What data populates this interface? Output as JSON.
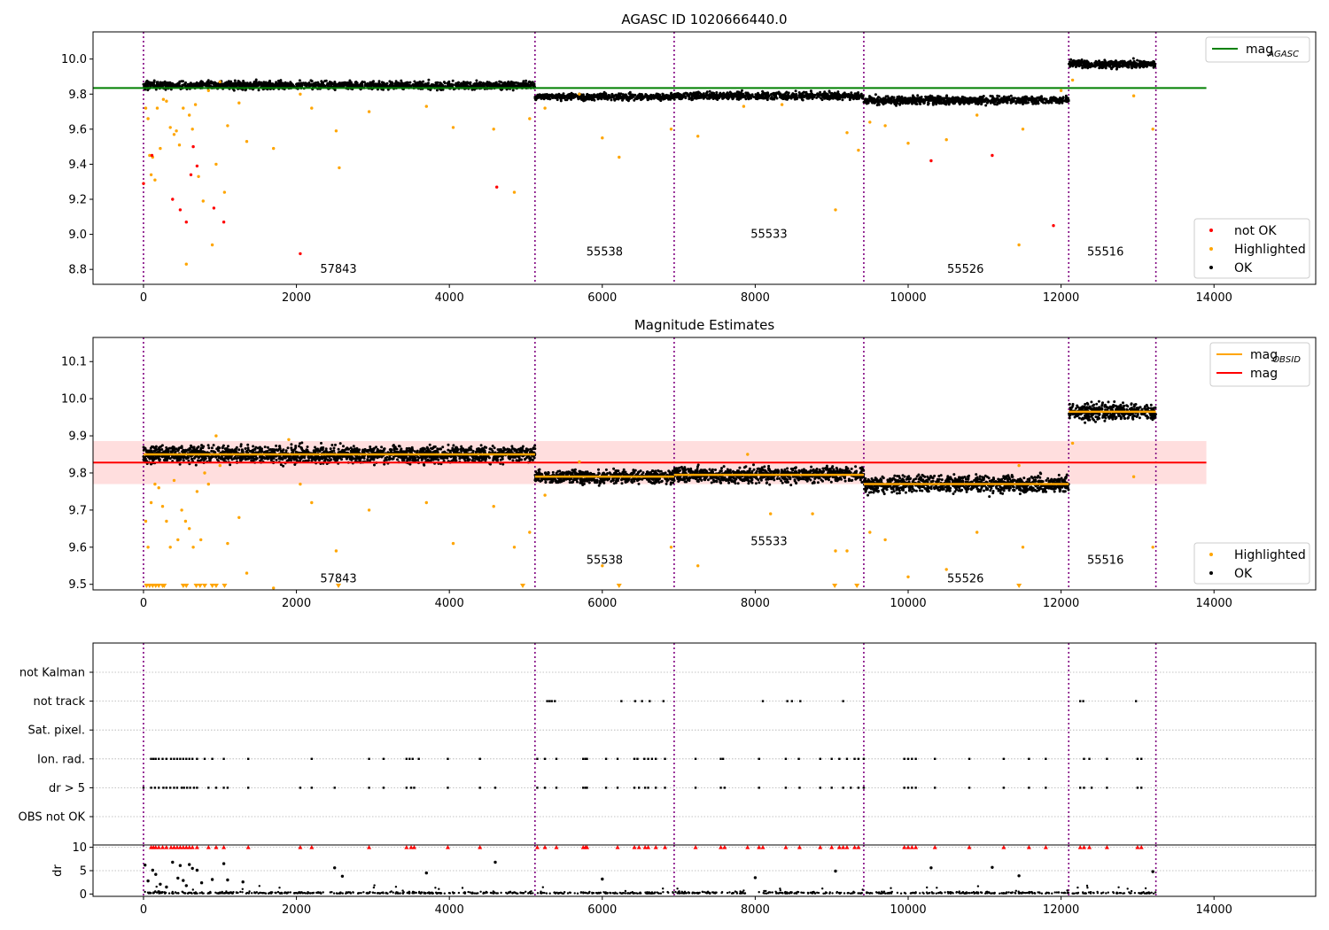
{
  "figure": {
    "title": "AGASC ID 1020666440.0",
    "colors": {
      "ok": "#000000",
      "highlighted": "#ffa500",
      "not_ok": "#ff0000",
      "agasc_line": "#008000",
      "obsid_line": "#ffa500",
      "mag_line": "#ff0000",
      "mag_band": "#ffd6d6",
      "obs_boundary": "#800080",
      "grid": "#b0b0b0"
    }
  },
  "chart_data": [
    {
      "id": "panel-agasc",
      "type": "scatter",
      "title": "AGASC ID 1020666440.0",
      "xlim": [
        -660,
        15330
      ],
      "ylim": [
        8.715,
        10.155
      ],
      "xticks": [
        0,
        2000,
        4000,
        6000,
        8000,
        10000,
        12000,
        14000
      ],
      "yticks": [
        8.8,
        9.0,
        9.2,
        9.4,
        9.6,
        9.8,
        10.0
      ],
      "ytick_labels": [
        "8.8",
        "9.0",
        "9.2",
        "9.4",
        "9.6",
        "9.8",
        "10.0"
      ],
      "obs_boundaries": [
        0,
        5120,
        6940,
        9420,
        12100,
        13240
      ],
      "obsids": [
        {
          "label": "57843",
          "x": 2550,
          "y": 8.78
        },
        {
          "label": "55538",
          "x": 6030,
          "y": 8.88
        },
        {
          "label": "55533",
          "x": 8180,
          "y": 8.98
        },
        {
          "label": "55526",
          "x": 10750,
          "y": 8.78
        },
        {
          "label": "55516",
          "x": 12580,
          "y": 8.88
        }
      ],
      "segments": [
        {
          "x0": 0,
          "x1": 5120,
          "mag": 9.85,
          "spread": 0.022
        },
        {
          "x0": 5120,
          "x1": 6940,
          "mag": 9.785,
          "spread": 0.018
        },
        {
          "x0": 6940,
          "x1": 9420,
          "mag": 9.79,
          "spread": 0.02
        },
        {
          "x0": 9420,
          "x1": 12100,
          "mag": 9.765,
          "spread": 0.022
        },
        {
          "x0": 12100,
          "x1": 13240,
          "mag": 9.97,
          "spread": 0.022
        }
      ],
      "agasc_mag": 9.835,
      "agasc_line_x": [
        -660,
        13900
      ],
      "highlighted_points": [
        [
          30,
          9.72
        ],
        [
          60,
          9.66
        ],
        [
          80,
          9.45
        ],
        [
          100,
          9.34
        ],
        [
          120,
          9.44
        ],
        [
          150,
          9.31
        ],
        [
          180,
          9.72
        ],
        [
          220,
          9.49
        ],
        [
          260,
          9.77
        ],
        [
          300,
          9.76
        ],
        [
          350,
          9.61
        ],
        [
          400,
          9.57
        ],
        [
          430,
          9.59
        ],
        [
          470,
          9.51
        ],
        [
          520,
          9.72
        ],
        [
          560,
          8.83
        ],
        [
          600,
          9.68
        ],
        [
          640,
          9.6
        ],
        [
          680,
          9.74
        ],
        [
          720,
          9.33
        ],
        [
          780,
          9.19
        ],
        [
          850,
          9.82
        ],
        [
          900,
          8.94
        ],
        [
          950,
          9.4
        ],
        [
          1000,
          9.87
        ],
        [
          1060,
          9.24
        ],
        [
          1100,
          9.62
        ],
        [
          1250,
          9.75
        ],
        [
          1350,
          9.53
        ],
        [
          1700,
          9.49
        ],
        [
          2050,
          9.8
        ],
        [
          2200,
          9.72
        ],
        [
          2520,
          9.59
        ],
        [
          2560,
          9.38
        ],
        [
          2950,
          9.7
        ],
        [
          3700,
          9.73
        ],
        [
          4050,
          9.61
        ],
        [
          4580,
          9.6
        ],
        [
          4850,
          9.24
        ],
        [
          5050,
          9.66
        ],
        [
          5250,
          9.72
        ],
        [
          5700,
          9.8
        ],
        [
          6000,
          9.55
        ],
        [
          6220,
          9.44
        ],
        [
          6900,
          9.6
        ],
        [
          7250,
          9.56
        ],
        [
          7850,
          9.73
        ],
        [
          8350,
          9.74
        ],
        [
          9050,
          9.14
        ],
        [
          9200,
          9.58
        ],
        [
          9350,
          9.48
        ],
        [
          9500,
          9.64
        ],
        [
          9700,
          9.62
        ],
        [
          10000,
          9.52
        ],
        [
          10500,
          9.54
        ],
        [
          10900,
          9.68
        ],
        [
          11450,
          8.94
        ],
        [
          11500,
          9.6
        ],
        [
          12000,
          9.82
        ],
        [
          12150,
          9.88
        ],
        [
          12950,
          9.79
        ],
        [
          13200,
          9.6
        ]
      ],
      "not_ok_points": [
        [
          0,
          9.29
        ],
        [
          110,
          9.45
        ],
        [
          380,
          9.2
        ],
        [
          480,
          9.14
        ],
        [
          560,
          9.07
        ],
        [
          620,
          9.34
        ],
        [
          650,
          9.5
        ],
        [
          700,
          9.39
        ],
        [
          920,
          9.15
        ],
        [
          1050,
          9.07
        ],
        [
          2050,
          8.89
        ],
        [
          4620,
          9.27
        ],
        [
          10300,
          9.42
        ],
        [
          11100,
          9.45
        ],
        [
          11900,
          9.05
        ]
      ],
      "legend": [
        {
          "label": "mag",
          "sub": "AGASC",
          "marker": "line",
          "color": "#008000"
        }
      ],
      "legend2": [
        {
          "label": "not OK",
          "marker": "dot",
          "color": "#ff0000"
        },
        {
          "label": "Highlighted",
          "marker": "dot",
          "color": "#ffa500"
        },
        {
          "label": "OK",
          "marker": "dot",
          "color": "#000000"
        }
      ]
    },
    {
      "id": "panel-estimates",
      "type": "scatter",
      "title": "Magnitude Estimates",
      "xlim": [
        -660,
        15330
      ],
      "ylim": [
        9.485,
        10.165
      ],
      "xticks": [
        0,
        2000,
        4000,
        6000,
        8000,
        10000,
        12000,
        14000
      ],
      "yticks": [
        9.5,
        9.6,
        9.7,
        9.8,
        9.9,
        10.0,
        10.1
      ],
      "ytick_labels": [
        "9.5",
        "9.6",
        "9.7",
        "9.8",
        "9.9",
        "10.0",
        "10.1"
      ],
      "obs_boundaries": [
        0,
        5120,
        6940,
        9420,
        12100,
        13240
      ],
      "obsids": [
        {
          "label": "57843",
          "x": 2550,
          "y": 9.505
        },
        {
          "label": "55538",
          "x": 6030,
          "y": 9.555
        },
        {
          "label": "55533",
          "x": 8180,
          "y": 9.605
        },
        {
          "label": "55526",
          "x": 10750,
          "y": 9.505
        },
        {
          "label": "55516",
          "x": 12580,
          "y": 9.555
        }
      ],
      "segments": [
        {
          "x0": 0,
          "x1": 5120,
          "mag": 9.85,
          "spread": 0.022
        },
        {
          "x0": 5120,
          "x1": 6940,
          "mag": 9.79,
          "spread": 0.018
        },
        {
          "x0": 6940,
          "x1": 9420,
          "mag": 9.795,
          "spread": 0.02
        },
        {
          "x0": 9420,
          "x1": 12100,
          "mag": 9.77,
          "spread": 0.022
        },
        {
          "x0": 12100,
          "x1": 13240,
          "mag": 9.965,
          "spread": 0.022
        }
      ],
      "mag": 9.828,
      "mag_band": [
        9.77,
        9.886
      ],
      "band_x": [
        -660,
        13900
      ],
      "highlighted_points": [
        [
          30,
          9.67
        ],
        [
          60,
          9.6
        ],
        [
          100,
          9.72
        ],
        [
          150,
          9.77
        ],
        [
          200,
          9.76
        ],
        [
          250,
          9.71
        ],
        [
          300,
          9.67
        ],
        [
          350,
          9.6
        ],
        [
          400,
          9.78
        ],
        [
          450,
          9.62
        ],
        [
          500,
          9.7
        ],
        [
          550,
          9.67
        ],
        [
          600,
          9.65
        ],
        [
          650,
          9.6
        ],
        [
          700,
          9.75
        ],
        [
          750,
          9.62
        ],
        [
          800,
          9.8
        ],
        [
          850,
          9.77
        ],
        [
          950,
          9.9
        ],
        [
          1000,
          9.82
        ],
        [
          1100,
          9.61
        ],
        [
          1250,
          9.68
        ],
        [
          1350,
          9.53
        ],
        [
          1700,
          9.49
        ],
        [
          1900,
          9.89
        ],
        [
          2050,
          9.77
        ],
        [
          2200,
          9.72
        ],
        [
          2520,
          9.59
        ],
        [
          2950,
          9.7
        ],
        [
          3700,
          9.72
        ],
        [
          4050,
          9.61
        ],
        [
          4580,
          9.71
        ],
        [
          4850,
          9.6
        ],
        [
          5050,
          9.64
        ],
        [
          5250,
          9.74
        ],
        [
          5700,
          9.83
        ],
        [
          6000,
          9.55
        ],
        [
          6900,
          9.6
        ],
        [
          7250,
          9.55
        ],
        [
          7900,
          9.85
        ],
        [
          8200,
          9.69
        ],
        [
          8750,
          9.69
        ],
        [
          9050,
          9.59
        ],
        [
          9200,
          9.59
        ],
        [
          9500,
          9.64
        ],
        [
          9700,
          9.62
        ],
        [
          10000,
          9.52
        ],
        [
          10500,
          9.54
        ],
        [
          10900,
          9.64
        ],
        [
          11450,
          9.82
        ],
        [
          11500,
          9.6
        ],
        [
          12150,
          9.88
        ],
        [
          12950,
          9.79
        ],
        [
          13200,
          9.6
        ]
      ],
      "floor_markers": [
        40,
        80,
        120,
        160,
        200,
        250,
        270,
        520,
        560,
        690,
        740,
        800,
        900,
        950,
        1060,
        2550,
        4960,
        6220,
        9040,
        9330,
        11450
      ],
      "legend": [
        {
          "label": "mag",
          "sub": "OBSID",
          "marker": "line",
          "color": "#ffa500"
        },
        {
          "label": "mag",
          "sub": "",
          "marker": "line",
          "color": "#ff0000"
        }
      ],
      "legend2": [
        {
          "label": "Highlighted",
          "marker": "dot",
          "color": "#ffa500"
        },
        {
          "label": "OK",
          "marker": "dot",
          "color": "#000000"
        }
      ]
    },
    {
      "id": "panel-flags",
      "type": "scatter",
      "xlim": [
        -660,
        15330
      ],
      "rows": [
        "not Kalman",
        "not track",
        "Sat. pixel.",
        "Ion. rad.",
        "dr > 5",
        "OBS not OK"
      ],
      "obs_boundaries": [
        0,
        5120,
        6940,
        9420,
        12100,
        13240
      ],
      "flag_points": {
        "not track": [
          5280,
          5310,
          5340,
          5380,
          6250,
          6430,
          6520,
          6620,
          6800,
          8100,
          8420,
          8480,
          8590,
          9150,
          12250,
          12290,
          12980
        ],
        "Ion. rad.": [
          100,
          130,
          160,
          200,
          250,
          300,
          360,
          400,
          440,
          480,
          520,
          560,
          600,
          640,
          700,
          800,
          900,
          1050,
          1370,
          2200,
          2950,
          3140,
          3440,
          3480,
          3520,
          3600,
          3980,
          4400,
          5150,
          5250,
          5400,
          5750,
          5780,
          5800,
          6050,
          6200,
          6420,
          6460,
          6550,
          6600,
          6650,
          6700,
          6820,
          7220,
          7550,
          7580,
          8050,
          8400,
          8570,
          8850,
          9000,
          9100,
          9200,
          9300,
          9350,
          9420,
          9950,
          10000,
          10050,
          10100,
          10350,
          10800,
          11250,
          11580,
          11800,
          12300,
          12370,
          12600,
          13000,
          13050
        ],
        "dr > 5": [
          0,
          100,
          150,
          200,
          260,
          300,
          350,
          400,
          440,
          500,
          530,
          570,
          610,
          660,
          700,
          850,
          950,
          1050,
          1100,
          1370,
          2050,
          2200,
          2500,
          2950,
          3140,
          3440,
          3500,
          3540,
          3980,
          4400,
          4600,
          5150,
          5250,
          5400,
          5750,
          5780,
          5800,
          6050,
          6200,
          6420,
          6480,
          6560,
          6600,
          6700,
          6820,
          7220,
          7550,
          7600,
          8050,
          8400,
          8580,
          8850,
          9000,
          9150,
          9250,
          9350,
          9420,
          9950,
          10000,
          10050,
          10100,
          10350,
          10800,
          11250,
          11580,
          11800,
          12250,
          12300,
          12400,
          12600,
          13000,
          13050
        ]
      }
    },
    {
      "id": "panel-dr",
      "type": "scatter",
      "xlim": [
        -660,
        15330
      ],
      "ylim": [
        -0.5,
        10.5
      ],
      "xticks": [
        0,
        2000,
        4000,
        6000,
        8000,
        10000,
        12000,
        14000
      ],
      "yticks": [
        0,
        5,
        10
      ],
      "ylabel": "dr",
      "obs_boundaries": [
        0,
        5120,
        6940,
        9420,
        12100,
        13240
      ],
      "large_dr_points": [
        [
          20,
          6.2
        ],
        [
          60,
          2.8
        ],
        [
          120,
          5.1
        ],
        [
          160,
          4.2
        ],
        [
          220,
          2.1
        ],
        [
          300,
          1.5
        ],
        [
          380,
          6.8
        ],
        [
          450,
          3.4
        ],
        [
          480,
          6.1
        ],
        [
          520,
          2.9
        ],
        [
          560,
          1.8
        ],
        [
          600,
          6.3
        ],
        [
          640,
          5.5
        ],
        [
          700,
          5.1
        ],
        [
          760,
          2.4
        ],
        [
          900,
          3.1
        ],
        [
          1050,
          6.5
        ],
        [
          1100,
          3.0
        ],
        [
          1300,
          2.6
        ],
        [
          2500,
          5.6
        ],
        [
          2600,
          3.8
        ],
        [
          3700,
          4.5
        ],
        [
          4600,
          6.8
        ],
        [
          6000,
          3.2
        ],
        [
          8000,
          3.5
        ],
        [
          9050,
          4.9
        ],
        [
          10300,
          5.6
        ],
        [
          11100,
          5.7
        ],
        [
          11450,
          3.9
        ],
        [
          13200,
          4.8
        ]
      ],
      "capped_points": [
        100,
        130,
        160,
        200,
        250,
        300,
        360,
        400,
        440,
        480,
        520,
        560,
        600,
        640,
        700,
        850,
        950,
        1050,
        1370,
        2050,
        2200,
        2950,
        3440,
        3500,
        3540,
        3980,
        4400,
        5150,
        5250,
        5400,
        5750,
        5780,
        5800,
        6200,
        6420,
        6480,
        6560,
        6600,
        6700,
        6820,
        7220,
        7550,
        7600,
        7900,
        8050,
        8100,
        8400,
        8580,
        8850,
        9000,
        9100,
        9150,
        9200,
        9300,
        9350,
        9950,
        10000,
        10050,
        10100,
        10350,
        10800,
        11250,
        11580,
        11800,
        12250,
        12300,
        12370,
        12600,
        13000,
        13050
      ]
    }
  ]
}
